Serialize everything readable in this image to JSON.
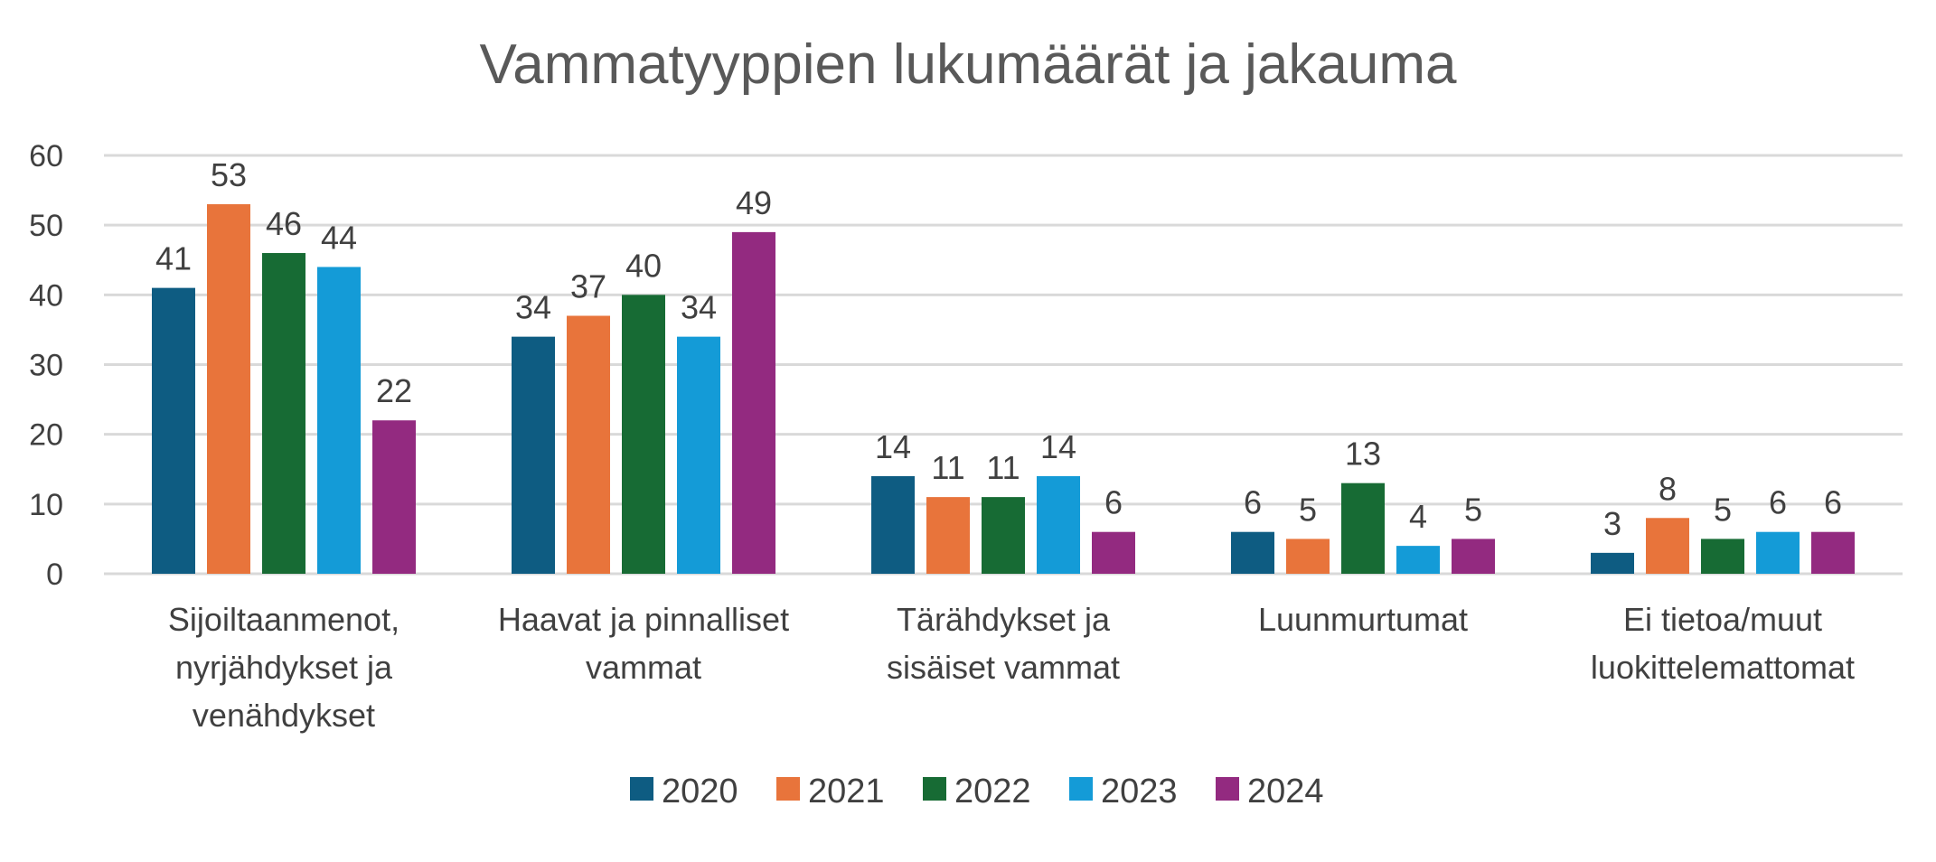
{
  "chart_data": {
    "type": "bar",
    "title": "Vammatyyppien lukumäärät ja jakauma",
    "xlabel": "",
    "ylabel": "",
    "ylim": [
      0,
      60
    ],
    "yticks": [
      0,
      10,
      20,
      30,
      40,
      50,
      60
    ],
    "grid": true,
    "legend_position": "bottom",
    "categories": [
      [
        "Sijoiltaanmenot,",
        "nyrjähdykset ja",
        "venähdykset"
      ],
      [
        "Haavat ja pinnalliset",
        "vammat"
      ],
      [
        "Tärähdykset ja",
        "sisäiset vammat"
      ],
      [
        "Luunmurtumat"
      ],
      [
        "Ei tietoa/muut",
        "luokittelemattomat"
      ]
    ],
    "series": [
      {
        "name": "2020",
        "color": "#0e5c82",
        "values": [
          41,
          34,
          14,
          6,
          3
        ]
      },
      {
        "name": "2021",
        "color": "#e8743b",
        "values": [
          53,
          37,
          11,
          5,
          8
        ]
      },
      {
        "name": "2022",
        "color": "#176b34",
        "values": [
          46,
          40,
          11,
          13,
          5
        ]
      },
      {
        "name": "2023",
        "color": "#149bd7",
        "values": [
          44,
          34,
          14,
          4,
          6
        ]
      },
      {
        "name": "2024",
        "color": "#932a80",
        "values": [
          22,
          49,
          6,
          5,
          6
        ]
      }
    ]
  }
}
